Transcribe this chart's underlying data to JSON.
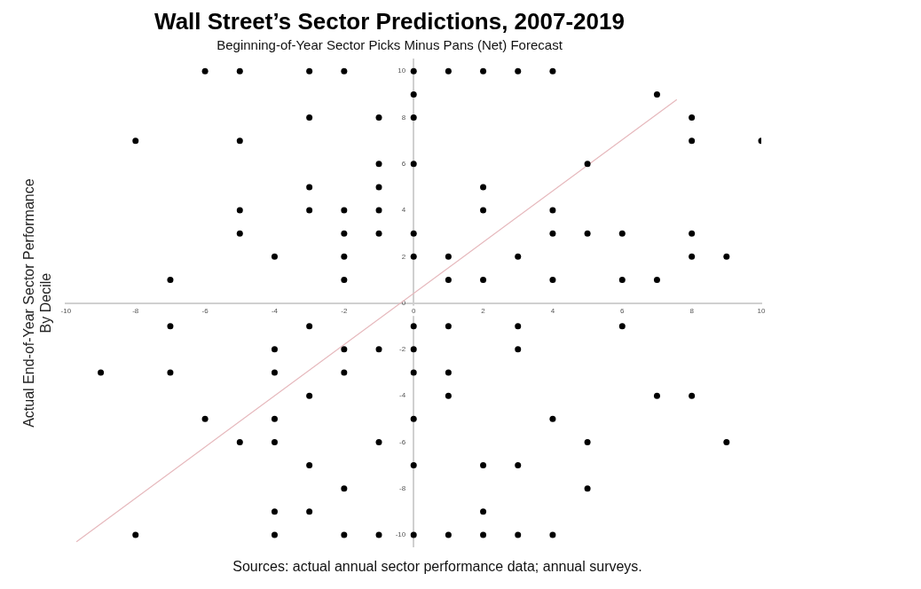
{
  "chart_data": {
    "type": "scatter",
    "title": "Wall Street’s Sector Predictions, 2007-2019",
    "subtitle": "Beginning-of-Year Sector Picks Minus Pans (Net) Forecast",
    "ylabel": "Actual End-of-Year Sector Performance\nBy Decile",
    "annotations": [
      "Sources: actual annual sector performance data; annual surveys."
    ],
    "xlim": [
      -10,
      10
    ],
    "ylim": [
      -10.5,
      10.5
    ],
    "xticks": [
      -10,
      -8,
      -6,
      -4,
      -2,
      0,
      2,
      4,
      6,
      8,
      10
    ],
    "yticks": [
      -10,
      -8,
      -6,
      -4,
      -2,
      0,
      2,
      4,
      6,
      8,
      10
    ],
    "grid": false,
    "legend": false,
    "marker": "circle",
    "series": [
      {
        "type": "scatter",
        "color": "#000000",
        "x": [
          -6,
          -5,
          -3,
          -2,
          0,
          1,
          2,
          3,
          4,
          0,
          7,
          -3,
          -1,
          0,
          8,
          -8,
          -5,
          8,
          10,
          -1,
          0,
          5,
          -3,
          -1,
          2,
          -5,
          -3,
          -2,
          -1,
          2,
          4,
          -5,
          -2,
          -1,
          0,
          4,
          5,
          6,
          8,
          -4,
          -2,
          0,
          1,
          3,
          8,
          9,
          -7,
          -2,
          1,
          2,
          4,
          6,
          7,
          -7,
          -3,
          0,
          1,
          3,
          6,
          -4,
          -2,
          -1,
          0,
          3,
          -9,
          -7,
          -4,
          -2,
          0,
          1,
          -3,
          1,
          7,
          8,
          -6,
          -4,
          0,
          4,
          -5,
          -4,
          -1,
          5,
          9,
          -3,
          0,
          2,
          3,
          -2,
          5,
          -4,
          -3,
          2,
          -8,
          -4,
          -2,
          -1,
          0,
          1,
          2,
          3,
          4
        ],
        "values": [
          10,
          10,
          10,
          10,
          10,
          10,
          10,
          10,
          10,
          9,
          9,
          8,
          8,
          8,
          8,
          7,
          7,
          7,
          7,
          6,
          6,
          6,
          5,
          5,
          5,
          4,
          4,
          4,
          4,
          4,
          4,
          3,
          3,
          3,
          3,
          3,
          3,
          3,
          3,
          2,
          2,
          2,
          2,
          2,
          2,
          2,
          1,
          1,
          1,
          1,
          1,
          1,
          1,
          -1,
          -1,
          -1,
          -1,
          -1,
          -1,
          -2,
          -2,
          -2,
          -2,
          -2,
          -3,
          -3,
          -3,
          -3,
          -3,
          -3,
          -4,
          -4,
          -4,
          -4,
          -5,
          -5,
          -5,
          -5,
          -6,
          -6,
          -6,
          -6,
          -6,
          -7,
          -7,
          -7,
          -7,
          -8,
          -8,
          -9,
          -9,
          -9,
          -10,
          -10,
          -10,
          -10,
          -10,
          -10,
          -10,
          -10,
          -10
        ]
      },
      {
        "type": "line",
        "color": "#e6b8bc",
        "marker": "none",
        "x": [
          -9.7,
          7.57
        ],
        "values": [
          -10.3,
          8.78
        ]
      }
    ]
  }
}
